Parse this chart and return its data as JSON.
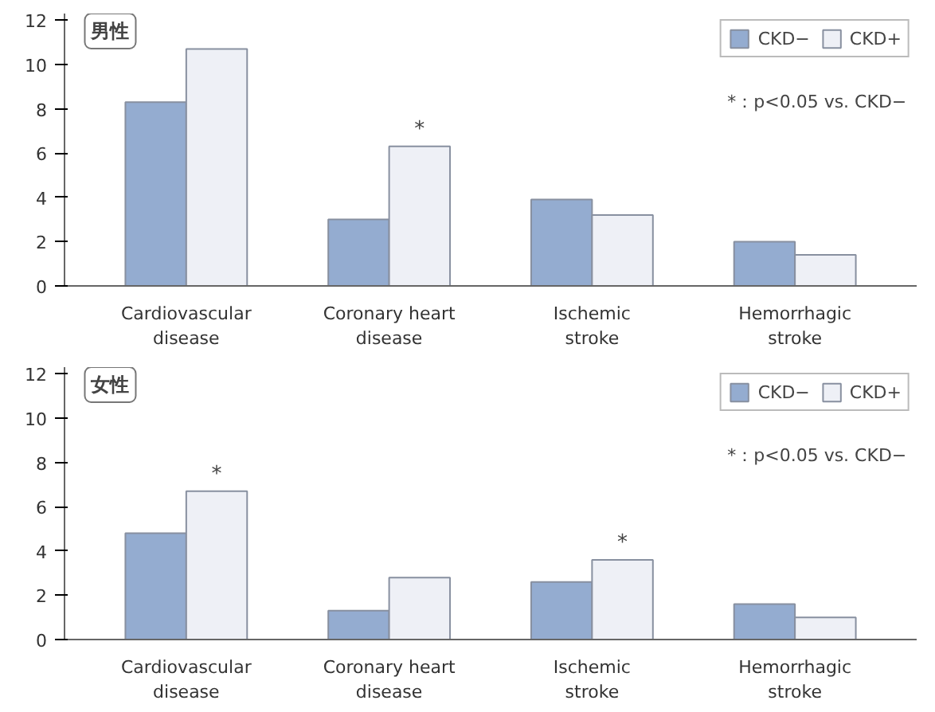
{
  "chart_data": [
    {
      "type": "bar",
      "title": "男性",
      "categories": [
        "Cardiovascular\ndisease",
        "Coronary heart\ndisease",
        "Ischemic\nstroke",
        "Hemorrhagic\nstroke"
      ],
      "series": [
        {
          "name": "CKD−",
          "color": "#94acd0",
          "values": [
            8.3,
            3.0,
            3.9,
            2.0
          ]
        },
        {
          "name": "CKD+",
          "color": "#eef0f6",
          "values": [
            10.7,
            6.3,
            3.2,
            1.4
          ]
        }
      ],
      "ylim": [
        0,
        12.3
      ],
      "yticks": [
        0,
        2,
        4,
        6,
        8,
        10,
        12
      ],
      "grid": false,
      "legend": "top right",
      "annotations": [
        {
          "text": "*",
          "x": "Coronary heart\ndisease",
          "y": 6.3
        },
        "*：p<0.05 vs. CKD−"
      ]
    },
    {
      "type": "bar",
      "title": "女性",
      "categories": [
        "Cardiovascular\ndisease",
        "Coronary heart\ndisease",
        "Ischemic\nstroke",
        "Hemorrhagic\nstroke"
      ],
      "series": [
        {
          "name": "CKD−",
          "color": "#94acd0",
          "values": [
            4.8,
            1.3,
            2.6,
            1.6
          ]
        },
        {
          "name": "CKD+",
          "color": "#eef0f6",
          "values": [
            6.7,
            2.8,
            3.6,
            1.0
          ]
        }
      ],
      "ylim": [
        0,
        12.3
      ],
      "yticks": [
        0,
        2,
        4,
        6,
        8,
        10,
        12
      ],
      "grid": false,
      "legend": "top right",
      "annotations": [
        {
          "text": "*",
          "x": "Cardiovascular\ndisease",
          "y": 6.7
        },
        {
          "text": "*",
          "x": "Ischemic\nstroke",
          "y": 3.6
        },
        "*：p<0.05 vs. CKD−"
      ]
    }
  ]
}
